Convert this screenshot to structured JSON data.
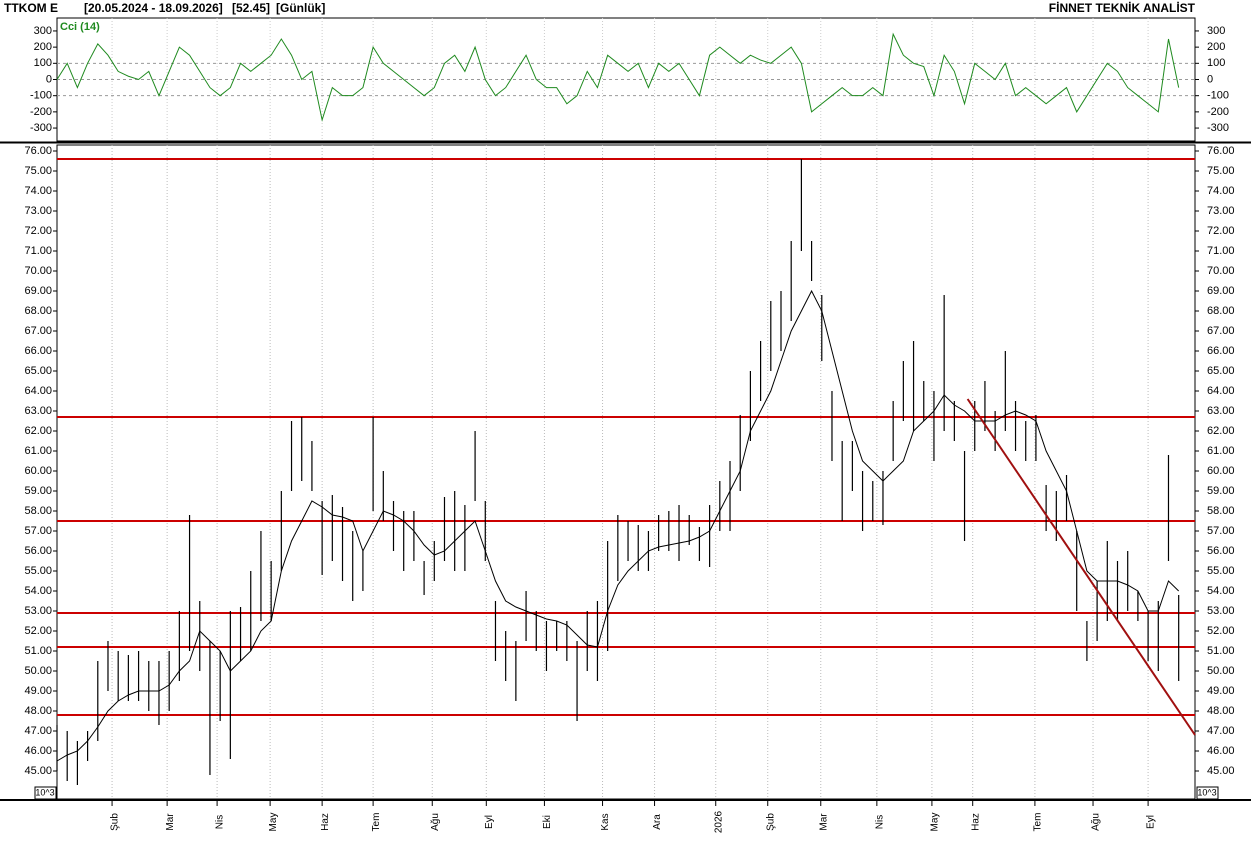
{
  "header": {
    "symbol": "TTKOM E",
    "range": "[20.05.2024 - 18.09.2026]",
    "last": "[52.45]",
    "period": "[Günlük]",
    "brand": "FİNNET TEKNİK ANALİST"
  },
  "chart_data": [
    {
      "type": "ohlc",
      "unit_label": "10^3",
      "high": [
        47.3,
        47,
        46.5,
        47,
        50.5,
        51.5,
        51,
        50.8,
        51,
        50.5,
        50.5,
        51,
        53,
        57.8,
        53.5,
        51.5,
        51,
        53,
        53.2,
        55,
        57,
        55.5,
        59,
        62.5,
        62.7,
        61.5,
        58.5,
        58.8,
        58.2,
        57,
        56,
        62.7,
        60,
        58.5,
        58,
        58,
        55.5,
        56.5,
        58.7,
        59,
        58.3,
        62,
        58.5,
        53.5,
        52,
        51.5,
        54,
        53,
        52.5,
        52.5,
        52.5,
        51.5,
        53,
        53.5,
        56.5,
        57.8,
        57.5,
        57.3,
        57,
        57.8,
        58,
        58.3,
        57.8,
        57.2,
        58.3,
        59.5,
        60.5,
        62.8,
        65,
        66.5,
        68.5,
        69,
        71.5,
        75.6,
        71.5,
        68.8,
        64,
        61.5,
        61.5,
        60,
        59.5,
        60,
        63.5,
        65.5,
        66.5,
        64.5,
        64,
        68.8,
        63.5,
        61,
        63.5,
        64.5,
        63,
        66,
        63.5,
        62.5,
        62.8,
        59.3,
        59,
        59.8,
        57,
        52.5,
        54.5,
        56.5,
        55.5,
        56,
        54,
        53,
        53.5,
        60.8,
        53.8
      ],
      "low": [
        45,
        44.5,
        44.3,
        45.5,
        46.5,
        49,
        48.5,
        48.5,
        48.5,
        48,
        47.3,
        48,
        49.5,
        51,
        50,
        44.8,
        47.5,
        45.6,
        50.5,
        51,
        52.5,
        52.5,
        55,
        59,
        59.5,
        59,
        54.8,
        55.5,
        54.5,
        53.5,
        54,
        58,
        57.5,
        56,
        55,
        55.5,
        53.8,
        54.5,
        55.5,
        55,
        55,
        58.5,
        55.5,
        50.5,
        49.5,
        48.5,
        51.5,
        51,
        50,
        51,
        50.5,
        47.5,
        50,
        49.5,
        51,
        54.5,
        55.5,
        55,
        55,
        56,
        56,
        55.5,
        56.3,
        55.5,
        55.2,
        57,
        57,
        59,
        61.5,
        63.5,
        65,
        66,
        67.5,
        71,
        69.5,
        65.5,
        60.5,
        57.5,
        59,
        57,
        57.5,
        57.3,
        60.5,
        62.5,
        62,
        62.5,
        60.5,
        62,
        61.5,
        56.5,
        61,
        62,
        61,
        62,
        61,
        60.5,
        60.5,
        57,
        56.5,
        57.5,
        53,
        50.5,
        51.5,
        52.5,
        52.5,
        53,
        52.5,
        50.5,
        50,
        55.5,
        49.5
      ],
      "bar_color": "#000000",
      "ma": {
        "color": "#000000",
        "values": [
          45.5,
          45.8,
          46,
          46.5,
          47.2,
          48,
          48.5,
          48.8,
          49,
          49,
          49,
          49.3,
          50,
          50.5,
          52,
          51.5,
          51,
          50,
          50.5,
          51,
          52,
          52.5,
          55,
          56.5,
          57.5,
          58.5,
          58.2,
          57.8,
          57.7,
          57.5,
          56,
          57,
          58,
          57.8,
          57.5,
          57,
          56.3,
          55.8,
          56,
          56.5,
          57,
          57.5,
          56,
          54.5,
          53.5,
          53.2,
          53,
          52.8,
          52.6,
          52.5,
          52.3,
          51.8,
          51.3,
          51.2,
          53,
          54.3,
          55,
          55.5,
          56,
          56.2,
          56.3,
          56.4,
          56.5,
          56.7,
          57,
          58,
          59,
          60,
          62,
          63,
          64,
          65.5,
          67,
          68,
          69,
          68,
          66,
          64,
          62,
          60.5,
          60,
          59.5,
          60,
          60.5,
          62,
          62.5,
          63,
          63.8,
          63.3,
          63,
          62.5,
          62.5,
          62.5,
          62.8,
          63,
          62.8,
          62.5,
          61,
          60,
          59,
          57,
          55,
          54.5,
          54.5,
          54.5,
          54.3,
          54,
          53,
          53,
          54.5,
          54
        ]
      },
      "levels": [
        75.6,
        62.7,
        57.5,
        52.9,
        51.2,
        47.8
      ],
      "level_color": "#cc0000",
      "trendline": {
        "x": [
          89.3,
          111.6
        ],
        "y": [
          63.6,
          46.8
        ],
        "color": "#a01010"
      },
      "xlim": [
        0,
        111.6
      ],
      "xticks": [
        {
          "value": 5.4,
          "label": "Şub"
        },
        {
          "value": 10.8,
          "label": "Mar"
        },
        {
          "value": 15.7,
          "label": "Nis"
        },
        {
          "value": 20.9,
          "label": "May"
        },
        {
          "value": 26.0,
          "label": "Haz"
        },
        {
          "value": 31.0,
          "label": "Tem"
        },
        {
          "value": 36.8,
          "label": "Ağu"
        },
        {
          "value": 42.1,
          "label": "Eyl"
        },
        {
          "value": 47.8,
          "label": "Eki"
        },
        {
          "value": 53.5,
          "label": "Kas"
        },
        {
          "value": 58.6,
          "label": "Ara"
        },
        {
          "value": 64.6,
          "label": "2026"
        },
        {
          "value": 69.7,
          "label": "Şub"
        },
        {
          "value": 74.9,
          "label": "Mar"
        },
        {
          "value": 80.4,
          "label": "Nis"
        },
        {
          "value": 85.8,
          "label": "May"
        },
        {
          "value": 89.8,
          "label": "Haz"
        },
        {
          "value": 95.9,
          "label": "Tem"
        },
        {
          "value": 101.6,
          "label": "Ağu"
        },
        {
          "value": 107.0,
          "label": "Eyl"
        }
      ],
      "ylim": [
        43.6,
        76.3
      ],
      "yticks": [
        {
          "value": 45,
          "label": "45.00"
        },
        {
          "value": 46,
          "label": "46.00"
        },
        {
          "value": 47,
          "label": "47.00"
        },
        {
          "value": 48,
          "label": "48.00"
        },
        {
          "value": 49,
          "label": "49.00"
        },
        {
          "value": 50,
          "label": "50.00"
        },
        {
          "value": 51,
          "label": "51.00"
        },
        {
          "value": 52,
          "label": "52.00"
        },
        {
          "value": 53,
          "label": "53.00"
        },
        {
          "value": 54,
          "label": "54.00"
        },
        {
          "value": 55,
          "label": "55.00"
        },
        {
          "value": 56,
          "label": "56.00"
        },
        {
          "value": 57,
          "label": "57.00"
        },
        {
          "value": 58,
          "label": "58.00"
        },
        {
          "value": 59,
          "label": "59.00"
        },
        {
          "value": 60,
          "label": "60.00"
        },
        {
          "value": 61,
          "label": "61.00"
        },
        {
          "value": 62,
          "label": "62.00"
        },
        {
          "value": 63,
          "label": "63.00"
        },
        {
          "value": 64,
          "label": "64.00"
        },
        {
          "value": 65,
          "label": "65.00"
        },
        {
          "value": 66,
          "label": "66.00"
        },
        {
          "value": 67,
          "label": "67.00"
        },
        {
          "value": 68,
          "label": "68.00"
        },
        {
          "value": 69,
          "label": "69.00"
        },
        {
          "value": 70,
          "label": "70.00"
        },
        {
          "value": 71,
          "label": "71.00"
        },
        {
          "value": 72,
          "label": "72.00"
        },
        {
          "value": 73,
          "label": "73.00"
        },
        {
          "value": 74,
          "label": "74.00"
        },
        {
          "value": 75,
          "label": "75.00"
        },
        {
          "value": 76,
          "label": "76.00"
        }
      ]
    },
    {
      "type": "line",
      "series": [
        {
          "name": "Cci (14)",
          "color": "#1f8a1f",
          "values": [
            0,
            100,
            -50,
            100,
            220,
            150,
            50,
            20,
            0,
            50,
            -100,
            50,
            200,
            150,
            50,
            -50,
            -100,
            -50,
            100,
            50,
            100,
            150,
            250,
            150,
            0,
            50,
            -250,
            -50,
            -100,
            -100,
            -50,
            200,
            100,
            50,
            0,
            -50,
            -100,
            -50,
            100,
            150,
            50,
            200,
            0,
            -100,
            -50,
            50,
            150,
            0,
            -50,
            -50,
            -150,
            -100,
            50,
            -50,
            150,
            100,
            50,
            100,
            -50,
            100,
            50,
            100,
            0,
            -100,
            150,
            200,
            150,
            100,
            150,
            120,
            100,
            150,
            200,
            100,
            -200,
            -150,
            -100,
            -50,
            -100,
            -100,
            -50,
            -100,
            280,
            150,
            100,
            80,
            -100,
            150,
            50,
            -150,
            100,
            50,
            0,
            100,
            -100,
            -50,
            -100,
            -150,
            -100,
            -50,
            -200,
            -100,
            0,
            100,
            50,
            -50,
            -100,
            -150,
            -200,
            250,
            -50
          ]
        }
      ],
      "guides": [
        100,
        0,
        -100
      ],
      "xlim": [
        0,
        111.6
      ],
      "ylim": [
        -380,
        380
      ],
      "yticks": [
        -300,
        -200,
        -100,
        0,
        100,
        200,
        300
      ]
    }
  ]
}
